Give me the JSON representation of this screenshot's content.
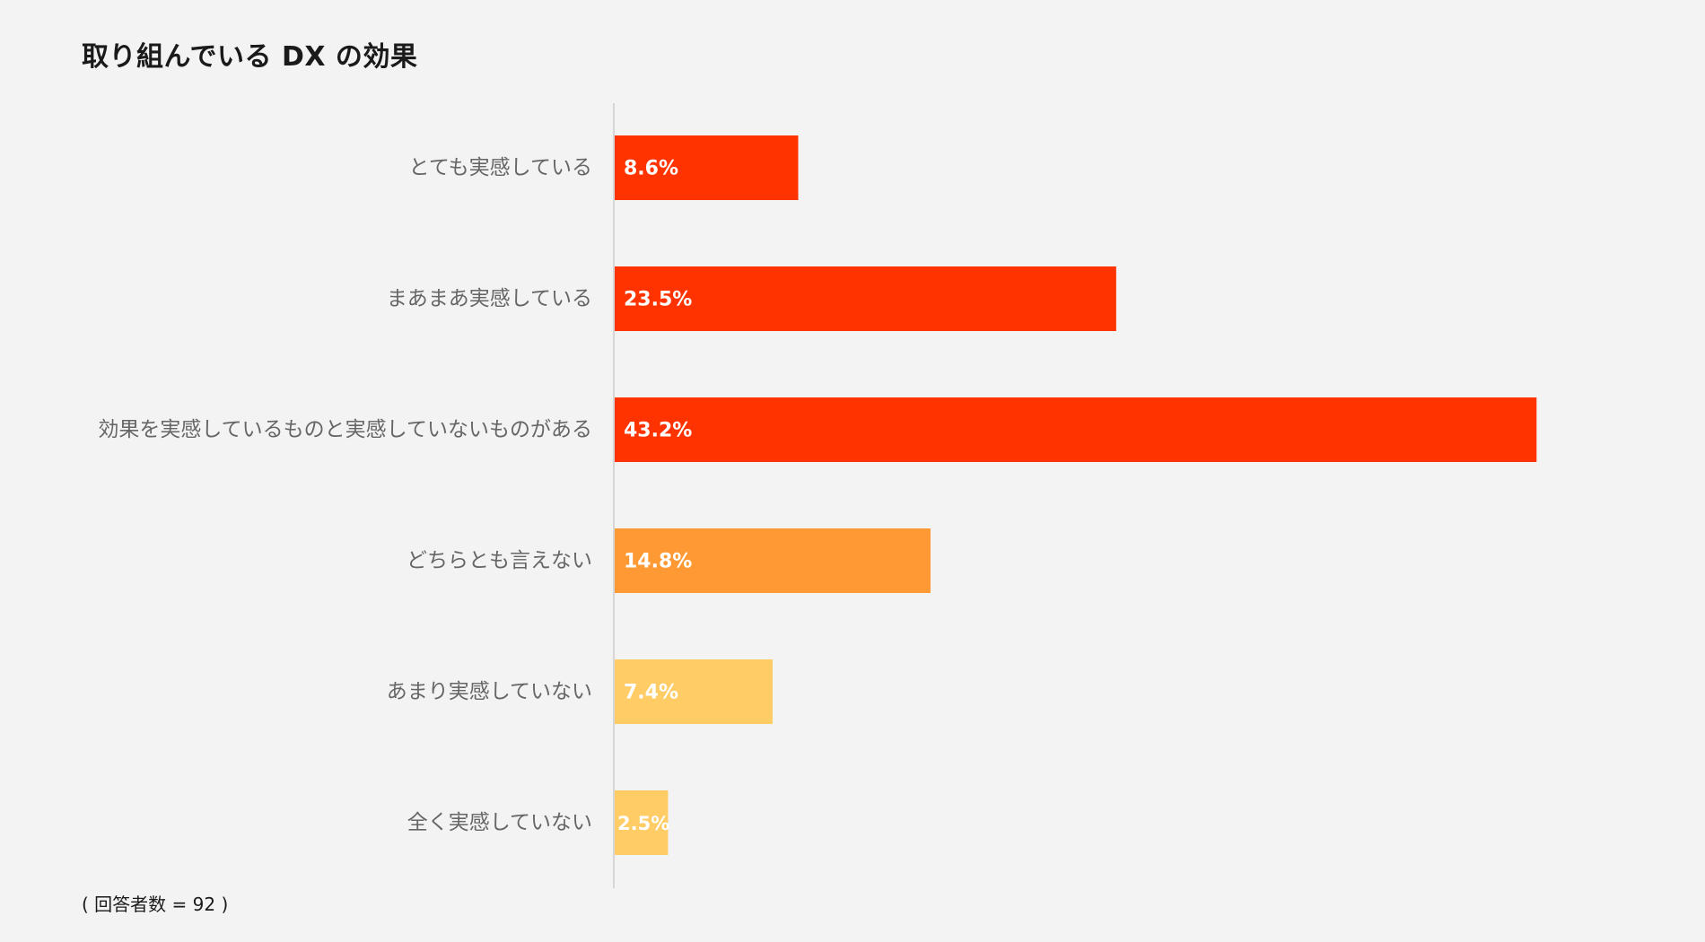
{
  "chart_data": {
    "type": "bar",
    "orientation": "horizontal",
    "title": "取り組んでいる DX の効果",
    "categories": [
      "とても実感している",
      "まあまあ実感している",
      "効果を実感しているものと実感していないものがある",
      "どちらとも言えない",
      "あまり実感していない",
      "全く実感していない"
    ],
    "values": [
      8.6,
      23.5,
      43.2,
      14.8,
      7.4,
      2.5
    ],
    "value_labels": [
      "8.6%",
      "23.5%",
      "43.2%",
      "14.8%",
      "7.4%",
      "2.5%"
    ],
    "colors": [
      "#ff3300",
      "#ff3300",
      "#ff3300",
      "#ff9933",
      "#ffcc66",
      "#ffcc66"
    ],
    "xlim": [
      0,
      45
    ],
    "grid": false,
    "legend": "none"
  },
  "footnote": "( 回答者数 = 92 )",
  "colors": {
    "background": "#f3f3f3",
    "axis": "#cccccc",
    "category_text": "#666666",
    "value_text": "#ffffff"
  }
}
